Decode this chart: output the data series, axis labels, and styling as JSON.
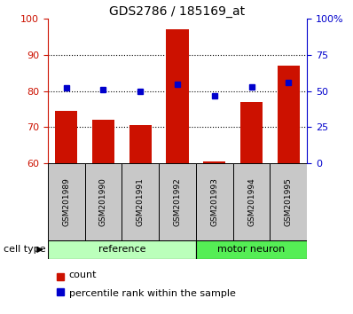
{
  "title": "GDS2786 / 185169_at",
  "categories": [
    "GSM201989",
    "GSM201990",
    "GSM201991",
    "GSM201992",
    "GSM201993",
    "GSM201994",
    "GSM201995"
  ],
  "count_values": [
    74.5,
    72.0,
    70.5,
    97.0,
    60.5,
    77.0,
    87.0
  ],
  "percentile_values": [
    52,
    51,
    50,
    55,
    47,
    53,
    56
  ],
  "count_base": 60,
  "left_ylim": [
    60,
    100
  ],
  "left_yticks": [
    60,
    70,
    80,
    90,
    100
  ],
  "right_ylim": [
    0,
    100
  ],
  "right_yticks": [
    0,
    25,
    50,
    75,
    100
  ],
  "right_yticklabels": [
    "0",
    "25",
    "50",
    "75",
    "100%"
  ],
  "bar_color": "#CC1100",
  "dot_color": "#0000CC",
  "left_tick_color": "#CC1100",
  "right_tick_color": "#0000CC",
  "group_labels": [
    "reference",
    "motor neuron"
  ],
  "ref_indices": [
    0,
    1,
    2,
    3
  ],
  "mot_indices": [
    4,
    5,
    6
  ],
  "cell_type_label": "cell type",
  "legend_count": "count",
  "legend_percentile": "percentile rank within the sample",
  "bar_width": 0.6,
  "plot_bg_color": "#FFFFFF",
  "label_box_color": "#C8C8C8",
  "ref_group_color": "#BBFFBB",
  "mot_group_color": "#55EE55",
  "grid_dotted_color": "#000000"
}
